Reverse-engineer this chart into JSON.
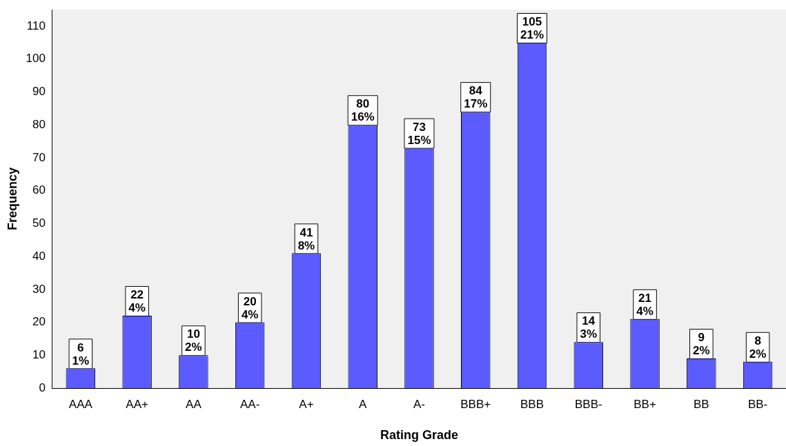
{
  "chart_data": {
    "type": "bar",
    "xlabel": "Rating Grade",
    "ylabel": "Frequency",
    "categories": [
      "AAA",
      "AA+",
      "AA",
      "AA-",
      "A+",
      "A",
      "A-",
      "BBB+",
      "BBB",
      "BBB-",
      "BB+",
      "BB",
      "BB-"
    ],
    "values": [
      6,
      22,
      10,
      20,
      41,
      80,
      73,
      84,
      105,
      14,
      21,
      9,
      8
    ],
    "value_labels": [
      "6\n1%",
      "22\n4%",
      "10\n2%",
      "20\n4%",
      "41\n8%",
      "80\n16%",
      "73\n15%",
      "84\n17%",
      "105\n21%",
      "14\n3%",
      "21\n4%",
      "9\n2%",
      "8\n2%"
    ],
    "color": "#5b5bff",
    "ylim": [
      0,
      115
    ],
    "yticks": [
      0,
      10,
      20,
      30,
      40,
      50,
      60,
      70,
      80,
      90,
      100,
      110
    ],
    "grid": false,
    "legend": false
  }
}
